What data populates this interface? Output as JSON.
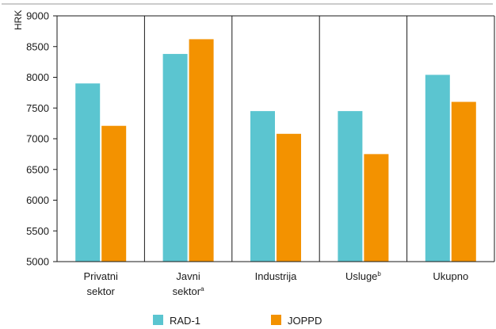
{
  "chart_data": {
    "type": "bar",
    "ylabel": "HRK",
    "ylim": [
      5000,
      9000
    ],
    "yticks": [
      5000,
      5500,
      6000,
      6500,
      7000,
      7500,
      8000,
      8500,
      9000
    ],
    "categories": [
      {
        "line1": "Privatni",
        "line2": "sektor",
        "sup": ""
      },
      {
        "line1": "Javni",
        "line2": "sektor",
        "sup": "a"
      },
      {
        "line1": "Industrija",
        "line2": "",
        "sup": ""
      },
      {
        "line1": "Usluge",
        "line2": "",
        "sup": "b"
      },
      {
        "line1": "Ukupno",
        "line2": "",
        "sup": ""
      }
    ],
    "series": [
      {
        "name": "RAD-1",
        "color": "#5bc5d0",
        "values": [
          7900,
          8380,
          7450,
          7450,
          8040
        ]
      },
      {
        "name": "JOPPD",
        "color": "#f39200",
        "values": [
          7210,
          8620,
          7080,
          6750,
          7600
        ]
      }
    ],
    "grid": "vertical-category-separators",
    "legend_position": "bottom"
  }
}
